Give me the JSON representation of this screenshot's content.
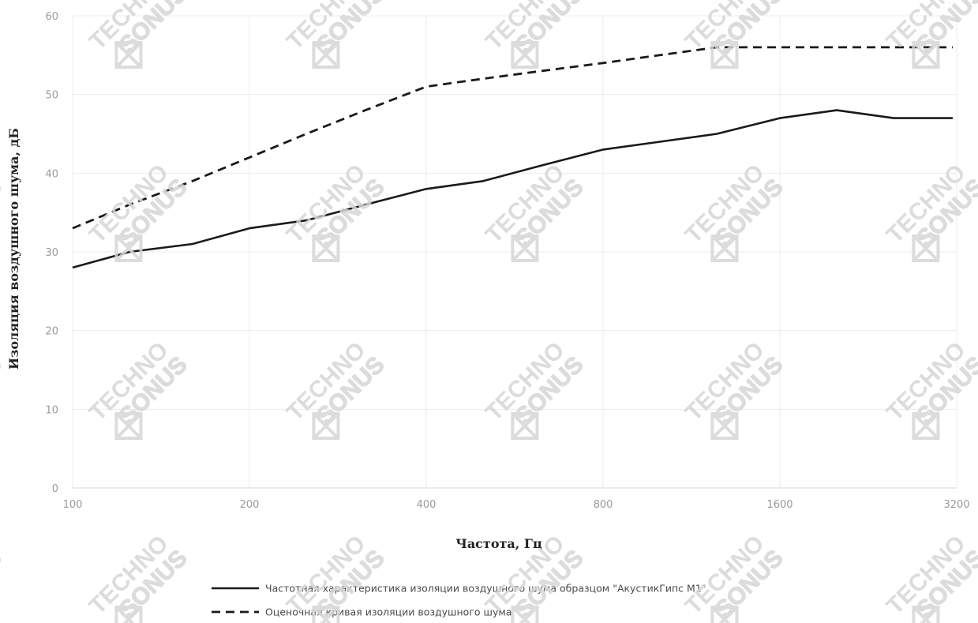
{
  "chart_data": {
    "type": "line",
    "title": "",
    "xlabel": "Частота, Гц",
    "ylabel": "Изоляция воздушного шума, дБ",
    "x_scale": "log2",
    "x_ticks": [
      100,
      200,
      400,
      800,
      1600,
      3200
    ],
    "y_ticks": [
      0,
      10,
      20,
      30,
      40,
      50,
      60
    ],
    "xlim": [
      100,
      3200
    ],
    "ylim": [
      0,
      60
    ],
    "grid": true,
    "legend_position": "bottom",
    "x": [
      100,
      125,
      160,
      200,
      250,
      315,
      400,
      500,
      630,
      800,
      1000,
      1250,
      1600,
      2000,
      2500,
      3150
    ],
    "series": [
      {
        "name": "Частотная характеристика изоляции воздушного шума образцом \"АкустикГипс М1\"",
        "style": "solid",
        "color": "#1a1a1a",
        "values": [
          28,
          30,
          31,
          33,
          34,
          36,
          38,
          39,
          41,
          43,
          44,
          45,
          47,
          48,
          47,
          47
        ]
      },
      {
        "name": "Оценочная кривая изоляции воздушного шума",
        "style": "dashed",
        "color": "#1a1a1a",
        "values": [
          33,
          36,
          39,
          42,
          45,
          48,
          51,
          52,
          53,
          54,
          55,
          56,
          56,
          56,
          56,
          56
        ]
      }
    ]
  },
  "watermark": {
    "line1": "TECHNO",
    "line2": "SONUS",
    "icon": "technosonus-logo-icon",
    "color": "#d6d6d6"
  }
}
